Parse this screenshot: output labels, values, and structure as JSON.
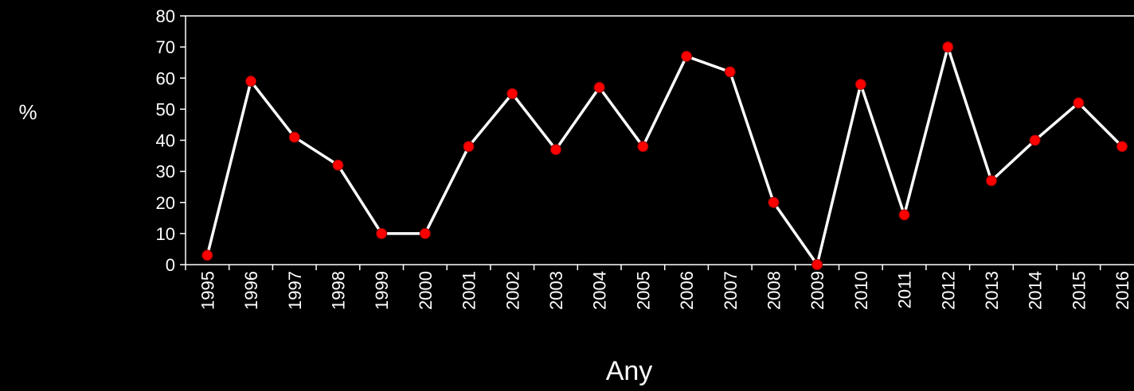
{
  "chart_data": {
    "type": "line",
    "title": "",
    "xlabel": "Any",
    "ylabel": "%",
    "categories": [
      "1995",
      "1996",
      "1997",
      "1998",
      "1999",
      "2000",
      "2001",
      "2002",
      "2003",
      "2004",
      "2005",
      "2006",
      "2007",
      "2008",
      "2009",
      "2010",
      "2011",
      "2012",
      "2013",
      "2014",
      "2015",
      "2016"
    ],
    "series": [
      {
        "values": [
          3,
          59,
          41,
          32,
          10,
          10,
          38,
          55,
          37,
          57,
          38,
          67,
          62,
          20,
          0,
          58,
          16,
          70,
          27,
          40,
          52,
          38
        ]
      }
    ],
    "ylim": [
      0,
      80
    ],
    "yticks": [
      0,
      10,
      20,
      30,
      40,
      50,
      60,
      70,
      80
    ],
    "grid": false,
    "legend": "none",
    "colors": {
      "background": "#000000",
      "axis": "#ffffff",
      "line": "#ffffff",
      "marker_fill": "#ff0000",
      "marker_stroke": "#8b0000",
      "text": "#ffffff"
    }
  }
}
